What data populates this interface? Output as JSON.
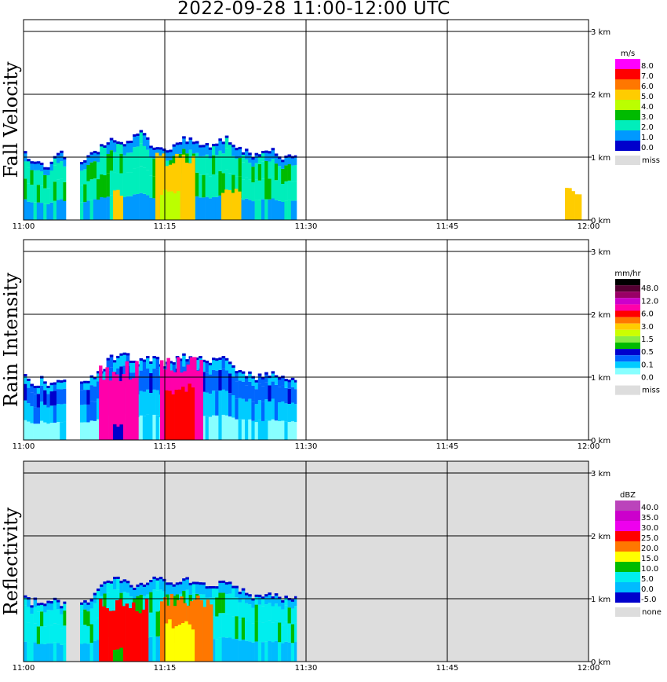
{
  "title": "2022-09-28   11:00-12:00 UTC",
  "chart_data": {
    "type": "heatmap",
    "x_ticks": [
      "11:00",
      "11:15",
      "11:30",
      "11:45",
      "12:00"
    ],
    "y_ticks": [
      "0 km",
      "1 km",
      "2 km",
      "3 km"
    ],
    "xlim_minutes": [
      0,
      60
    ],
    "ylim_km": [
      0,
      3.2
    ],
    "grid": true,
    "panels": [
      {
        "name": "Fall Velocity",
        "units": "m/s",
        "background": "#ffffff",
        "legend_labels": [
          "8.0",
          "7.0",
          "6.0",
          "5.0",
          "4.0",
          "3.0",
          "2.0",
          "1.0",
          "0.0"
        ],
        "legend_colors": [
          "#ff00ff",
          "#ff0000",
          "#ff7700",
          "#ffcc00",
          "#bbff00",
          "#00bb00",
          "#00eebb",
          "#0099ff",
          "#0000cc"
        ],
        "missing_label": "miss",
        "missing_color": "#dddddd",
        "bands": [
          {
            "from": 0,
            "to": 4.5,
            "tops": [
              1.05,
              1.0,
              0.95,
              1.0,
              0.9,
              0.85,
              1.0,
              1.1,
              1.05,
              1.0
            ]
          },
          {
            "from": 6,
            "to": 29,
            "tops": [
              0.9,
              1.1,
              1.3,
              1.25,
              1.4,
              1.2,
              1.15,
              1.3,
              1.25,
              1.2,
              1.3,
              1.1,
              1.05,
              1.15,
              1.0,
              1.05
            ]
          }
        ],
        "cores": [
          {
            "from": 9.5,
            "to": 10.5,
            "top": 0.45,
            "level": 5
          },
          {
            "from": 14,
            "to": 18,
            "top": 0.95,
            "level": 5
          },
          {
            "from": 14.5,
            "to": 16.5,
            "top": 0.45,
            "level": 4
          },
          {
            "from": 21,
            "to": 23,
            "top": 0.5,
            "level": 5
          },
          {
            "from": 57.5,
            "to": 59,
            "top": 0.45,
            "level": 5
          }
        ]
      },
      {
        "name": "Rain Intensity",
        "units": "mm/hr",
        "background": "#ffffff",
        "legend_labels": [
          "48.0",
          "12.0",
          "6.0",
          "3.0",
          "1.5",
          "0.5",
          "0.1",
          "0.0"
        ],
        "legend_colors": [
          "#000000",
          "#550033",
          "#990066",
          "#cc00cc",
          "#ff00aa",
          "#ff0000",
          "#ff7700",
          "#ffcc00",
          "#ccff00",
          "#88ee44",
          "#00bb00",
          "#0000cc",
          "#0066ff",
          "#00ccff",
          "#88ffff",
          "#ffffff"
        ],
        "missing_label": "miss",
        "missing_color": "#dddddd",
        "bands": [
          {
            "from": 0,
            "to": 4.5,
            "tops": [
              1.0,
              0.95,
              0.9,
              1.0,
              0.85,
              0.9,
              1.0,
              0.95
            ]
          },
          {
            "from": 6,
            "to": 29,
            "tops": [
              0.9,
              1.0,
              1.3,
              1.35,
              1.25,
              1.3,
              1.2,
              1.35,
              1.3,
              1.25,
              1.3,
              1.1,
              1.0,
              1.05,
              1.0,
              1.0
            ]
          }
        ],
        "cores": [
          {
            "from": 8,
            "to": 12,
            "top": 1.1,
            "level": 11
          },
          {
            "from": 14.5,
            "to": 19,
            "top": 1.2,
            "level": 11
          },
          {
            "from": 15,
            "to": 18,
            "top": 0.8,
            "level": 10
          },
          {
            "from": 9.5,
            "to": 10.5,
            "top": 0.25,
            "level": 4
          }
        ]
      },
      {
        "name": "Reflectivity",
        "units": "dBZ",
        "background": "#dddddd",
        "legend_labels": [
          "40.0",
          "35.0",
          "30.0",
          "25.0",
          "20.0",
          "15.0",
          "10.0",
          "5.0",
          "0.0",
          "-5.0"
        ],
        "legend_colors": [
          "#bb44bb",
          "#cc00cc",
          "#ee00ee",
          "#ff0000",
          "#ff7700",
          "#ffff00",
          "#00bb00",
          "#00eeee",
          "#00bbff",
          "#0000cc"
        ],
        "missing_label": "none",
        "missing_color": "#dddddd",
        "bands": [
          {
            "from": 0,
            "to": 4.5,
            "tops": [
              1.0,
              0.95,
              1.0,
              0.9,
              1.0,
              0.95,
              0.9,
              1.0
            ]
          },
          {
            "from": 6,
            "to": 29,
            "tops": [
              0.9,
              1.1,
              1.3,
              1.3,
              1.2,
              1.35,
              1.25,
              1.3,
              1.25,
              1.2,
              1.3,
              1.15,
              1.05,
              1.1,
              1.0,
              1.0
            ]
          }
        ],
        "cores": [
          {
            "from": 8,
            "to": 13,
            "top": 0.9,
            "level": 6
          },
          {
            "from": 14.5,
            "to": 20,
            "top": 1.0,
            "level": 5
          },
          {
            "from": 15,
            "to": 18,
            "top": 0.6,
            "level": 4
          },
          {
            "from": 9.5,
            "to": 10.5,
            "top": 0.2,
            "level": 3
          },
          {
            "from": 15,
            "to": 16,
            "top": 0.3,
            "level": 4
          }
        ]
      }
    ]
  }
}
